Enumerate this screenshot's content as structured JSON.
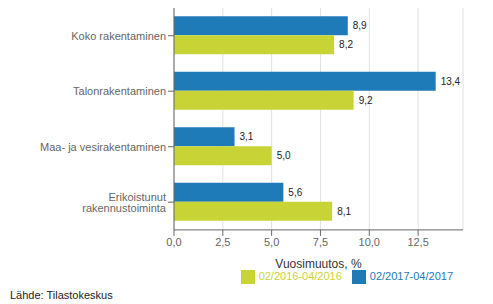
{
  "chart_data": {
    "type": "bar",
    "orientation": "horizontal",
    "categories": [
      "Koko rakentaminen",
      "Talonrakentaminen",
      "Maa- ja vesirakentaminen",
      "Erikoistunut rakennustoiminta"
    ],
    "series": [
      {
        "name": "02/2017-04/2017",
        "color": "#1F7BB8",
        "values": [
          8.9,
          13.4,
          3.1,
          5.6
        ],
        "value_labels": [
          "8,9",
          "13,4",
          "3,1",
          "5,6"
        ]
      },
      {
        "name": "02/2016-04/2016",
        "color": "#C8D435",
        "values": [
          8.2,
          9.2,
          5.0,
          8.1
        ],
        "value_labels": [
          "8,2",
          "9,2",
          "5,0",
          "8,1"
        ]
      }
    ],
    "xlabel": "Vuosimuutos, %",
    "xlim": [
      0,
      14.8
    ],
    "xticks": [
      {
        "value": 0.0,
        "label": "0,0"
      },
      {
        "value": 2.5,
        "label": "2,5"
      },
      {
        "value": 5.0,
        "label": "5,0"
      },
      {
        "value": 7.5,
        "label": "7,5"
      },
      {
        "value": 10.0,
        "label": "10,0"
      },
      {
        "value": 12.5,
        "label": "12,5"
      }
    ],
    "grid": true,
    "legend": "lower right",
    "data_labels": true,
    "footnote": "Lähde: Tilastokeskus"
  }
}
